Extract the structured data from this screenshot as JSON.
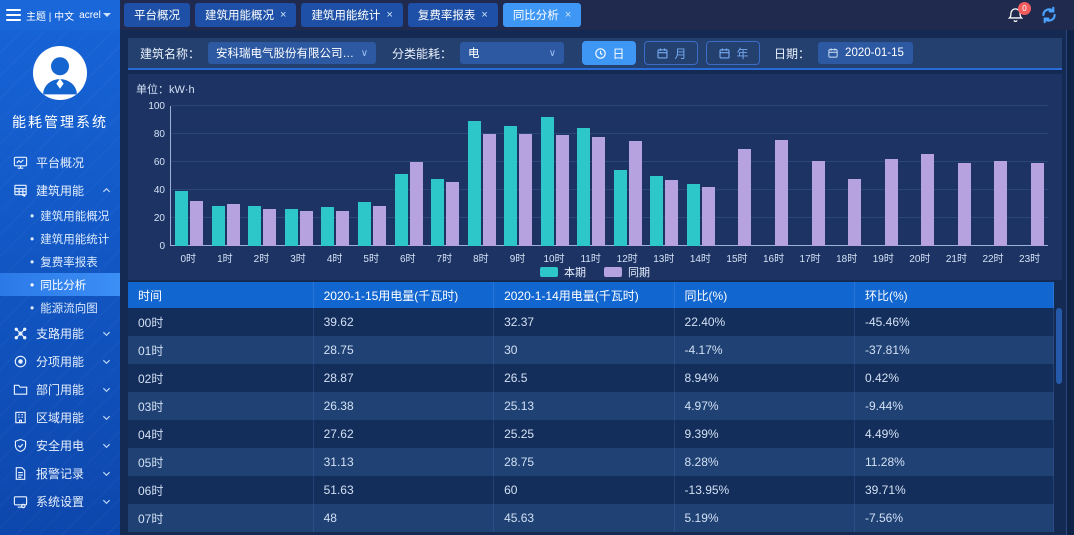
{
  "topbar": {
    "theme_lang": "主题 | 中文",
    "user": "acrel",
    "notification_count": "0",
    "tabs": [
      {
        "label": "平台概况",
        "closable": false,
        "active": false
      },
      {
        "label": "建筑用能概况",
        "closable": true,
        "active": false
      },
      {
        "label": "建筑用能统计",
        "closable": true,
        "active": false
      },
      {
        "label": "复费率报表",
        "closable": true,
        "active": false
      },
      {
        "label": "同比分析",
        "closable": true,
        "active": true
      }
    ]
  },
  "sidebar": {
    "app_title": "能耗管理系统",
    "menu": [
      {
        "label": "平台概况",
        "icon": "monitor-icon",
        "expandable": false,
        "expanded": false
      },
      {
        "label": "建筑用能",
        "icon": "building-energy-icon",
        "expandable": true,
        "expanded": true,
        "children": [
          {
            "label": "建筑用能概况",
            "active": false
          },
          {
            "label": "建筑用能统计",
            "active": false
          },
          {
            "label": "复费率报表",
            "active": false
          },
          {
            "label": "同比分析",
            "active": true
          },
          {
            "label": "能源流向图",
            "active": false
          }
        ]
      },
      {
        "label": "支路用能",
        "icon": "branch-icon",
        "expandable": true,
        "expanded": false
      },
      {
        "label": "分项用能",
        "icon": "category-icon",
        "expandable": true,
        "expanded": false
      },
      {
        "label": "部门用能",
        "icon": "department-icon",
        "expandable": true,
        "expanded": false
      },
      {
        "label": "区域用能",
        "icon": "region-icon",
        "expandable": true,
        "expanded": false
      },
      {
        "label": "安全用电",
        "icon": "safety-icon",
        "expandable": true,
        "expanded": false
      },
      {
        "label": "报警记录",
        "icon": "alarm-record-icon",
        "expandable": true,
        "expanded": false
      },
      {
        "label": "系统设置",
        "icon": "system-settings-icon",
        "expandable": true,
        "expanded": false
      }
    ]
  },
  "filters": {
    "building_label": "建筑名称：",
    "building_value": "安科瑞电气股份有限公司A楼",
    "energy_label": "分类能耗：",
    "energy_value": "电",
    "period_buttons": [
      {
        "label": "日",
        "icon": "clock-icon",
        "active": true
      },
      {
        "label": "月",
        "icon": "calendar-icon",
        "active": false
      },
      {
        "label": "年",
        "icon": "calendar-icon",
        "active": false
      }
    ],
    "date_label": "日期：",
    "date_value": "2020-01-15"
  },
  "chart_data": {
    "type": "bar",
    "unit_label": "单位：kW·h",
    "categories": [
      "0时",
      "1时",
      "2时",
      "3时",
      "4时",
      "5时",
      "6时",
      "7时",
      "8时",
      "9时",
      "10时",
      "11时",
      "12时",
      "13时",
      "14时",
      "15时",
      "16时",
      "17时",
      "18时",
      "19时",
      "20时",
      "21时",
      "22时",
      "23时"
    ],
    "series": [
      {
        "name": "本期",
        "color": "#2ec7c9",
        "values": [
          39.62,
          28.75,
          28.87,
          26.38,
          27.62,
          31.13,
          51.63,
          48,
          89,
          86,
          92,
          84,
          54,
          50,
          44,
          null,
          null,
          null,
          null,
          null,
          null,
          null,
          null,
          null
        ]
      },
      {
        "name": "同期",
        "color": "#b6a2de",
        "values": [
          32.37,
          30,
          26.5,
          25.13,
          25.25,
          28.75,
          60,
          45.63,
          80,
          80,
          79,
          78,
          75,
          47,
          42,
          69,
          76,
          61,
          48,
          62,
          66,
          59,
          61,
          59
        ]
      }
    ],
    "ylim": [
      0,
      100
    ],
    "yticks": [
      0,
      20,
      40,
      60,
      80,
      100
    ],
    "grid": true,
    "legend_position": "bottom"
  },
  "table": {
    "headers": [
      "时间",
      "2020-1-15用电量(千瓦时)",
      "2020-1-14用电量(千瓦时)",
      "同比(%)",
      "环比(%)"
    ],
    "rows": [
      [
        "00时",
        "39.62",
        "32.37",
        "22.40%",
        "-45.46%"
      ],
      [
        "01时",
        "28.75",
        "30",
        "-4.17%",
        "-37.81%"
      ],
      [
        "02时",
        "28.87",
        "26.5",
        "8.94%",
        "0.42%"
      ],
      [
        "03时",
        "26.38",
        "25.13",
        "4.97%",
        "-9.44%"
      ],
      [
        "04时",
        "27.62",
        "25.25",
        "9.39%",
        "4.49%"
      ],
      [
        "05时",
        "31.13",
        "28.75",
        "8.28%",
        "11.28%"
      ],
      [
        "06时",
        "51.63",
        "60",
        "-13.95%",
        "39.71%"
      ],
      [
        "07时",
        "48",
        "45.63",
        "5.19%",
        "-7.56%"
      ]
    ]
  },
  "colors": {
    "accent": "#3e97f5",
    "bar_current": "#2ec7c9",
    "bar_previous": "#b6a2de",
    "table_header": "#1166d0",
    "notification_badge": "#f25c5c",
    "sidebar_top": "#1663d6",
    "sidebar_bottom": "#0d47ad",
    "main_background": "#152a52"
  }
}
